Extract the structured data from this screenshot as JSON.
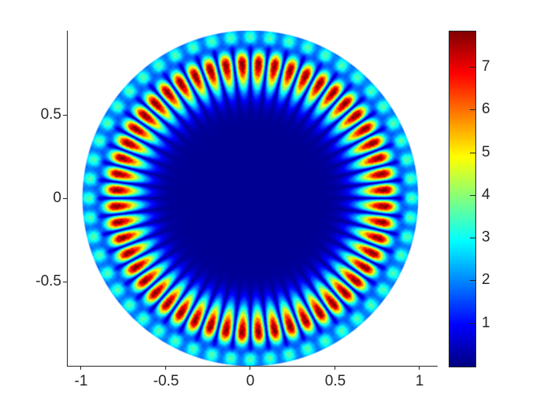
{
  "figure": {
    "background": "#ffffff",
    "title": ""
  },
  "axes": {
    "tick_color": "#262626",
    "x_ticks": {
      "values": [
        -1,
        -0.5,
        0,
        0.5,
        1
      ],
      "labels": [
        "-1",
        "-0.5",
        "0",
        "0.5",
        "1"
      ]
    },
    "y_ticks": {
      "values": [
        0.5,
        0,
        -0.5
      ],
      "labels": [
        "0.5",
        "0",
        "-0.5"
      ]
    }
  },
  "colorbar": {
    "min": 0,
    "max": 7.85,
    "colormap": "jet",
    "tick_values": [
      1,
      2,
      3,
      4,
      5,
      6,
      7
    ],
    "tick_labels": [
      "1",
      "2",
      "3",
      "4",
      "5",
      "6",
      "7"
    ]
  },
  "chart_data": {
    "type": "heatmap",
    "title": "",
    "xlabel": "",
    "ylabel": "",
    "description": "Whispering-gallery-type standing-wave mode magnitude |u(r,theta)| on the unit disk: a ring of 52 radially elongated red lobes centered near r=0.81 (peak value ~7.8), dark navy interior (value ~0), thin cyan secondary ring near r=0.95 brightest over the inter-lobe gaps, and a medium-blue rim at r=1, drawn with the jet colormap.",
    "domain": {
      "shape": "disk",
      "radius": 1,
      "x_range": [
        -1.08,
        1.1
      ],
      "y_range": [
        -1.0,
        1.0
      ]
    },
    "azimuthal_order": 26,
    "lobe_count": 52,
    "lobe_ring_radius": 0.805,
    "peak_value": 7.83,
    "value_range": [
      0,
      7.85
    ],
    "colormap": "jet",
    "colorbar_ticks": [
      1,
      2,
      3,
      4,
      5,
      6,
      7
    ],
    "x_tick_values": [
      -1,
      -0.5,
      0,
      0.5,
      1
    ],
    "y_tick_values": [
      0.5,
      0,
      -0.5
    ],
    "model": {
      "base": 0.15,
      "noise_amp": 0.05,
      "main": {
        "amplitude": 7.7,
        "r0": 0.805,
        "sigma_in": 0.15,
        "sigma_out": 0.075
      },
      "outer_ring": {
        "amplitude": 3.1,
        "r0": 0.952,
        "sigma": 0.042,
        "mod_floor": 0.45
      },
      "rim": {
        "amplitude": 1.6,
        "r0": 1.0,
        "sigma": 0.035,
        "mod_floor": 0.75
      }
    }
  }
}
